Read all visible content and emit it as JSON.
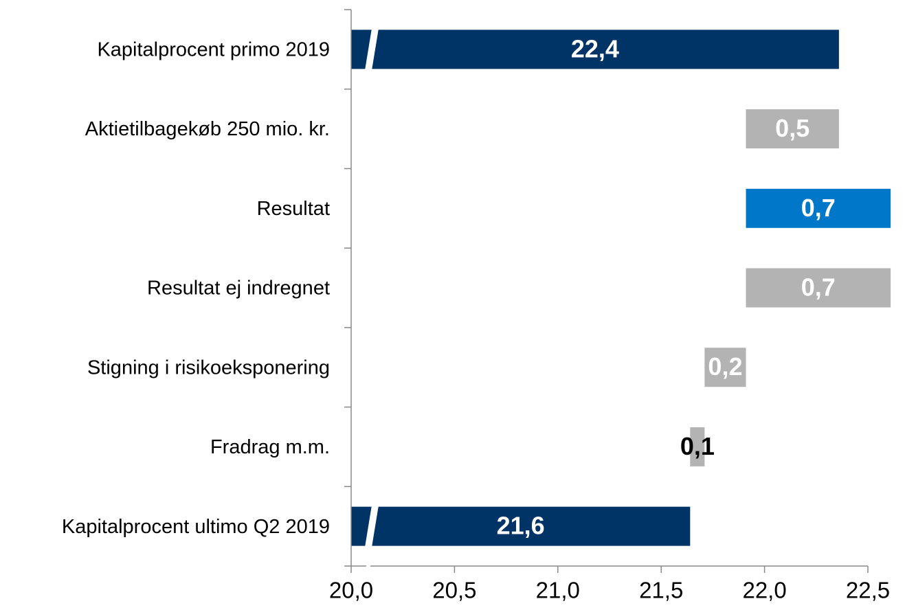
{
  "chart_data": {
    "type": "waterfall",
    "categories": [
      "Kapitalprocent primo 2019",
      "Aktietilbagekøb 250 mio. kr.",
      "Resultat",
      "Resultat ej indregnet",
      "Stigning i risikoeksponering",
      "Fradrag m.m.",
      "Kapitalprocent ultimo Q2 2019"
    ],
    "values": [
      22.36,
      -0.45,
      0.7,
      -0.7,
      -0.2,
      -0.07,
      21.64
    ],
    "value_labels": [
      "22,4",
      "0,5",
      "0,7",
      "0,7",
      "0,2",
      "0,1",
      "21,6"
    ],
    "colors": [
      "#003366",
      "#b3b3b3",
      "#0077c8",
      "#b3b3b3",
      "#b3b3b3",
      "#b3b3b3",
      "#003366"
    ],
    "xlim": [
      20,
      22.5
    ],
    "xticks": [
      {
        "value": 20,
        "label": "20,0"
      },
      {
        "value": 20.5,
        "label": "20,5"
      },
      {
        "value": 21,
        "label": "21,0"
      },
      {
        "value": 21.5,
        "label": "21,5"
      },
      {
        "value": 22,
        "label": "22,0"
      },
      {
        "value": 22.5,
        "label": "22,5"
      }
    ]
  }
}
